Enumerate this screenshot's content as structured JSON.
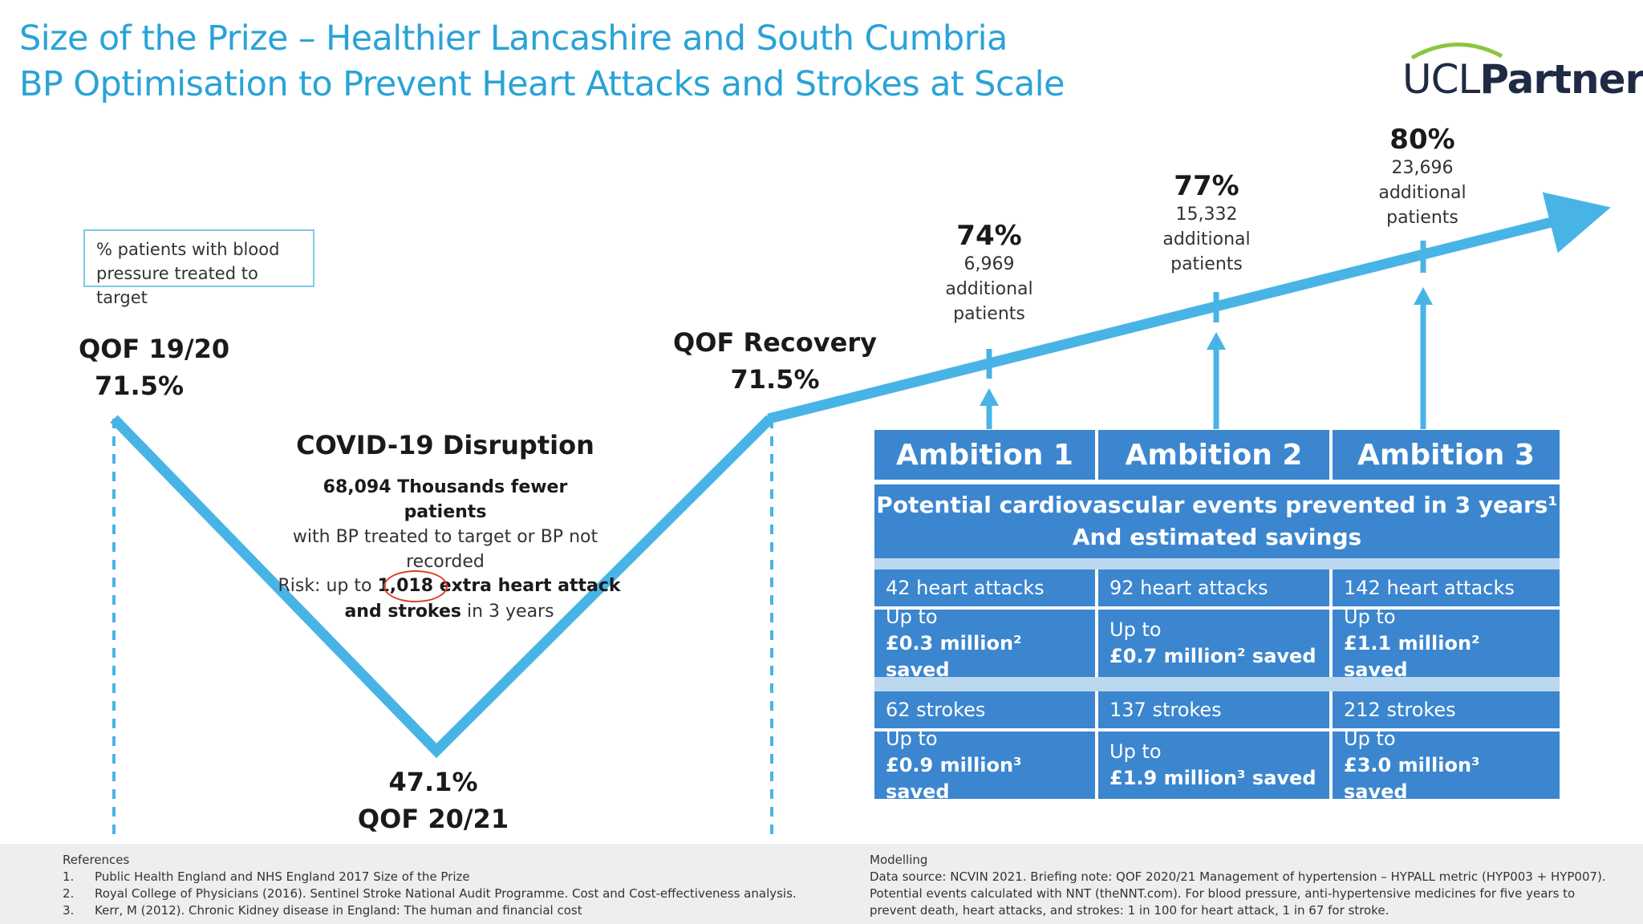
{
  "title": {
    "line1": "Size of the Prize – Healthier Lancashire and South Cumbria",
    "line2": "BP Optimisation to Prevent Heart Attacks and Strokes at Scale"
  },
  "logo": {
    "part1": "UCL",
    "part2": "Partners"
  },
  "legend": "% patients with blood pressure treated to target",
  "qof1920": {
    "label": "QOF 19/20",
    "value": "71.5%"
  },
  "covid": {
    "title": "COVID-19 Disruption",
    "bold": "68,094 Thousands fewer patients",
    "rest": "with BP treated to target or BP not recorded",
    "risk_prefix": "Risk: up to ",
    "risk_bold1": "1,018 extra heart attack",
    "risk_bold2": "and strokes",
    "risk_suffix": " in 3 years"
  },
  "qof2021": {
    "value": "47.1%",
    "label": "QOF 20/21"
  },
  "qofRecovery": {
    "label": "QOF Recovery",
    "value": "71.5%"
  },
  "points": [
    {
      "pct": "74%",
      "count": "6,969",
      "line2": "additional",
      "line3": "patients"
    },
    {
      "pct": "77%",
      "count": "15,332",
      "line2": "additional",
      "line3": "patients"
    },
    {
      "pct": "80%",
      "count": "23,696",
      "line2": "additional",
      "line3": "patients"
    }
  ],
  "table": {
    "ambitions": [
      "Ambition 1",
      "Ambition 2",
      "Ambition 3"
    ],
    "header1": "Potential cardiovascular events prevented in 3 years¹",
    "header2": "And estimated savings",
    "heart": [
      "42 heart attacks",
      "92 heart attacks",
      "142 heart attacks"
    ],
    "heart_saved": [
      {
        "upto": "Up to",
        "amt": "£0.3 million² saved"
      },
      {
        "upto": "Up to",
        "amt": "£0.7 million² saved"
      },
      {
        "upto": "Up to",
        "amt": "£1.1 million² saved"
      }
    ],
    "strokes": [
      "62 strokes",
      "137 strokes",
      "212 strokes"
    ],
    "stroke_saved": [
      {
        "upto": "Up to",
        "amt": "£0.9 million³ saved"
      },
      {
        "upto": "Up to",
        "amt": "£1.9 million³ saved"
      },
      {
        "upto": "Up to",
        "amt": "£3.0 million³ saved"
      }
    ]
  },
  "references": {
    "heading": "References",
    "items": [
      {
        "n": "1.",
        "text": "Public Health England and NHS England 2017  Size of the Prize"
      },
      {
        "n": "2.",
        "text": "Royal College of Physicians (2016). Sentinel Stroke National Audit Programme. Cost and Cost-effectiveness analysis."
      },
      {
        "n": "3.",
        "text": "Kerr, M (2012). Chronic Kidney disease in England: The human and financial cost"
      }
    ]
  },
  "modelling": {
    "heading": "Modelling",
    "lines": [
      "Data source: NCVIN 2021. Briefing note: QOF 2020/21 Management of hypertension – HYPALL metric (HYP003 + HYP007).",
      "Potential events calculated with NNT (theNNT.com). For blood pressure, anti-hypertensive medicines for five years to",
      "prevent death, heart attacks, and strokes: 1 in 100 for heart attack, 1 in 67 for stroke."
    ]
  },
  "colors": {
    "accent": "#2aa3d6",
    "line": "#48b4e6",
    "table": "#3b86cf",
    "circle": "#d9402b"
  }
}
